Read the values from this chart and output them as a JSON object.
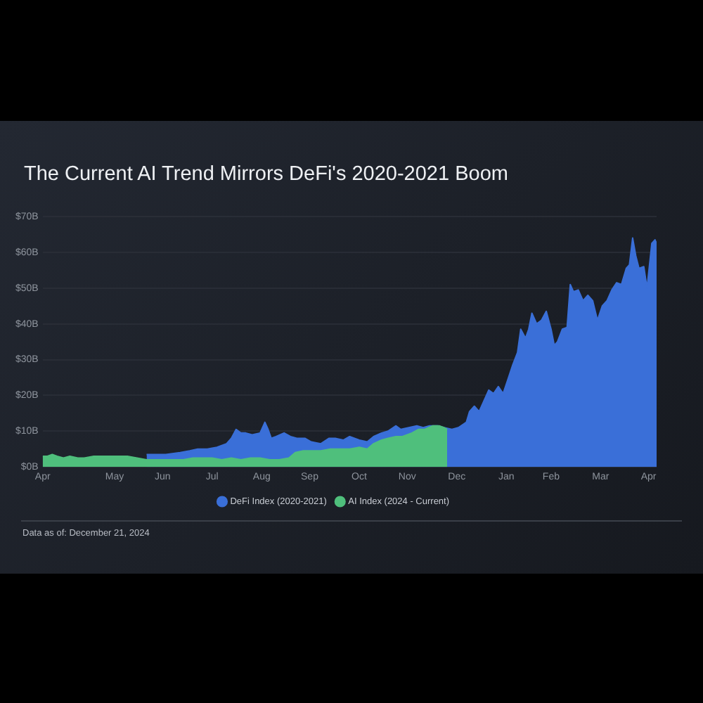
{
  "chart_data": {
    "type": "area",
    "title": "The Current AI Trend Mirrors DeFi's 2020-2021 Boom",
    "xlim": [
      "2020-04-16",
      "2021-05-05"
    ],
    "xticks": [
      {
        "value": "2020-04-16",
        "label": "Apr"
      },
      {
        "value": "2020-05-31",
        "label": "May"
      },
      {
        "value": "2020-06-30",
        "label": "Jun"
      },
      {
        "value": "2020-07-31",
        "label": "Jul"
      },
      {
        "value": "2020-08-31",
        "label": "Aug"
      },
      {
        "value": "2020-09-30",
        "label": "Sep"
      },
      {
        "value": "2020-10-31",
        "label": "Oct"
      },
      {
        "value": "2020-11-30",
        "label": "Nov"
      },
      {
        "value": "2020-12-31",
        "label": "Dec"
      },
      {
        "value": "2021-01-31",
        "label": "Jan"
      },
      {
        "value": "2021-02-28",
        "label": "Feb"
      },
      {
        "value": "2021-03-31",
        "label": "Mar"
      },
      {
        "value": "2021-04-30",
        "label": "Apr"
      }
    ],
    "ylim": [
      0,
      70
    ],
    "yticks": [
      {
        "value": 0,
        "label": "$0B"
      },
      {
        "value": 10,
        "label": "$10B"
      },
      {
        "value": 20,
        "label": "$20B"
      },
      {
        "value": 30,
        "label": "$30B"
      },
      {
        "value": 40,
        "label": "$40B"
      },
      {
        "value": 50,
        "label": "$50B"
      },
      {
        "value": 60,
        "label": "$60B"
      },
      {
        "value": 70,
        "label": "$70B"
      }
    ],
    "grid": "y",
    "legend": "bottom",
    "series": [
      {
        "name": "DeFi Index (2020-2021)",
        "color": "#3a6fd8",
        "x": [
          "2020-06-20",
          "2020-07-02",
          "2020-07-11",
          "2020-07-17",
          "2020-07-22",
          "2020-07-28",
          "2020-08-03",
          "2020-08-09",
          "2020-08-12",
          "2020-08-15",
          "2020-08-18",
          "2020-08-21",
          "2020-08-25",
          "2020-08-30",
          "2020-09-02",
          "2020-09-04",
          "2020-09-06",
          "2020-09-09",
          "2020-09-14",
          "2020-09-18",
          "2020-09-22",
          "2020-09-27",
          "2020-10-01",
          "2020-10-07",
          "2020-10-12",
          "2020-10-16",
          "2020-10-21",
          "2020-10-25",
          "2020-10-31",
          "2020-11-05",
          "2020-11-09",
          "2020-11-14",
          "2020-11-18",
          "2020-11-23",
          "2020-11-26",
          "2020-12-01",
          "2020-12-06",
          "2020-12-10",
          "2020-12-14",
          "2020-12-19",
          "2020-12-23",
          "2020-12-28",
          "2021-01-01",
          "2021-01-06",
          "2021-01-08",
          "2021-01-11",
          "2021-01-14",
          "2021-01-17",
          "2021-01-20",
          "2021-01-23",
          "2021-01-26",
          "2021-01-29",
          "2021-02-01",
          "2021-02-04",
          "2021-02-07",
          "2021-02-09",
          "2021-02-12",
          "2021-02-14",
          "2021-02-16",
          "2021-02-19",
          "2021-02-22",
          "2021-02-25",
          "2021-02-28",
          "2021-03-02",
          "2021-03-04",
          "2021-03-07",
          "2021-03-10",
          "2021-03-12",
          "2021-03-14",
          "2021-03-17",
          "2021-03-20",
          "2021-03-23",
          "2021-03-26",
          "2021-03-29",
          "2021-04-01",
          "2021-04-04",
          "2021-04-07",
          "2021-04-10",
          "2021-04-13",
          "2021-04-16",
          "2021-04-18",
          "2021-04-20",
          "2021-04-22",
          "2021-04-24",
          "2021-04-27",
          "2021-04-29",
          "2021-05-02",
          "2021-05-04",
          "2021-05-05"
        ],
        "values": [
          3.5,
          3.5,
          4,
          4.5,
          5,
          5,
          5.5,
          6.5,
          8,
          10.5,
          9.5,
          9.5,
          9,
          9.5,
          12.5,
          10.5,
          8,
          8.5,
          9.5,
          8.5,
          8,
          8,
          7,
          6.5,
          8,
          8,
          7.5,
          8.5,
          7.5,
          7,
          8.5,
          9.5,
          10,
          11.5,
          10.5,
          11,
          11.5,
          11,
          11.5,
          11.5,
          11,
          10.5,
          11,
          12.5,
          15.5,
          17,
          15.5,
          18.5,
          21.5,
          20.5,
          22.5,
          20.5,
          24.5,
          28.5,
          32,
          38.5,
          36,
          38.5,
          43,
          40,
          41,
          43.5,
          38.5,
          34,
          35,
          38.5,
          39,
          51,
          49,
          49.5,
          46.5,
          48,
          46.5,
          41,
          45,
          46.5,
          49.5,
          51.5,
          51,
          55.5,
          56.5,
          64,
          59,
          55.5,
          56,
          50,
          62.5,
          63.5,
          62.5
        ]
      },
      {
        "name": "AI Index (2024 - Current)",
        "color": "#4fbf7c",
        "x": [
          "2020-04-16",
          "2020-04-19",
          "2020-04-22",
          "2020-04-25",
          "2020-04-29",
          "2020-05-03",
          "2020-05-08",
          "2020-05-12",
          "2020-05-18",
          "2020-05-24",
          "2020-05-29",
          "2020-06-02",
          "2020-06-08",
          "2020-06-14",
          "2020-06-20",
          "2020-06-26",
          "2020-07-02",
          "2020-07-08",
          "2020-07-13",
          "2020-07-19",
          "2020-07-25",
          "2020-07-31",
          "2020-08-06",
          "2020-08-12",
          "2020-08-18",
          "2020-08-24",
          "2020-08-30",
          "2020-09-05",
          "2020-09-11",
          "2020-09-17",
          "2020-09-21",
          "2020-09-26",
          "2020-10-01",
          "2020-10-07",
          "2020-10-13",
          "2020-10-19",
          "2020-10-25",
          "2020-10-31",
          "2020-11-05",
          "2020-11-09",
          "2020-11-14",
          "2020-11-18",
          "2020-11-23",
          "2020-11-27",
          "2020-12-03",
          "2020-12-07",
          "2020-12-11",
          "2020-12-16",
          "2020-12-20",
          "2020-12-23",
          "2020-12-25"
        ],
        "values": [
          3,
          3,
          3.5,
          3,
          2.5,
          3,
          2.5,
          2.5,
          3,
          3,
          3,
          3,
          3,
          2.5,
          2,
          2,
          2,
          2,
          2,
          2.5,
          2.5,
          2.5,
          2,
          2.5,
          2,
          2.5,
          2.5,
          2,
          2,
          2.5,
          4,
          4.5,
          4.5,
          4.5,
          5,
          5,
          5,
          5.5,
          5,
          6.5,
          7.5,
          8,
          8.5,
          8.5,
          9.5,
          10.5,
          10.5,
          11.5,
          11.5,
          11,
          10.5
        ]
      }
    ],
    "annotations": [
      "Data as of: December 21, 2024"
    ]
  }
}
